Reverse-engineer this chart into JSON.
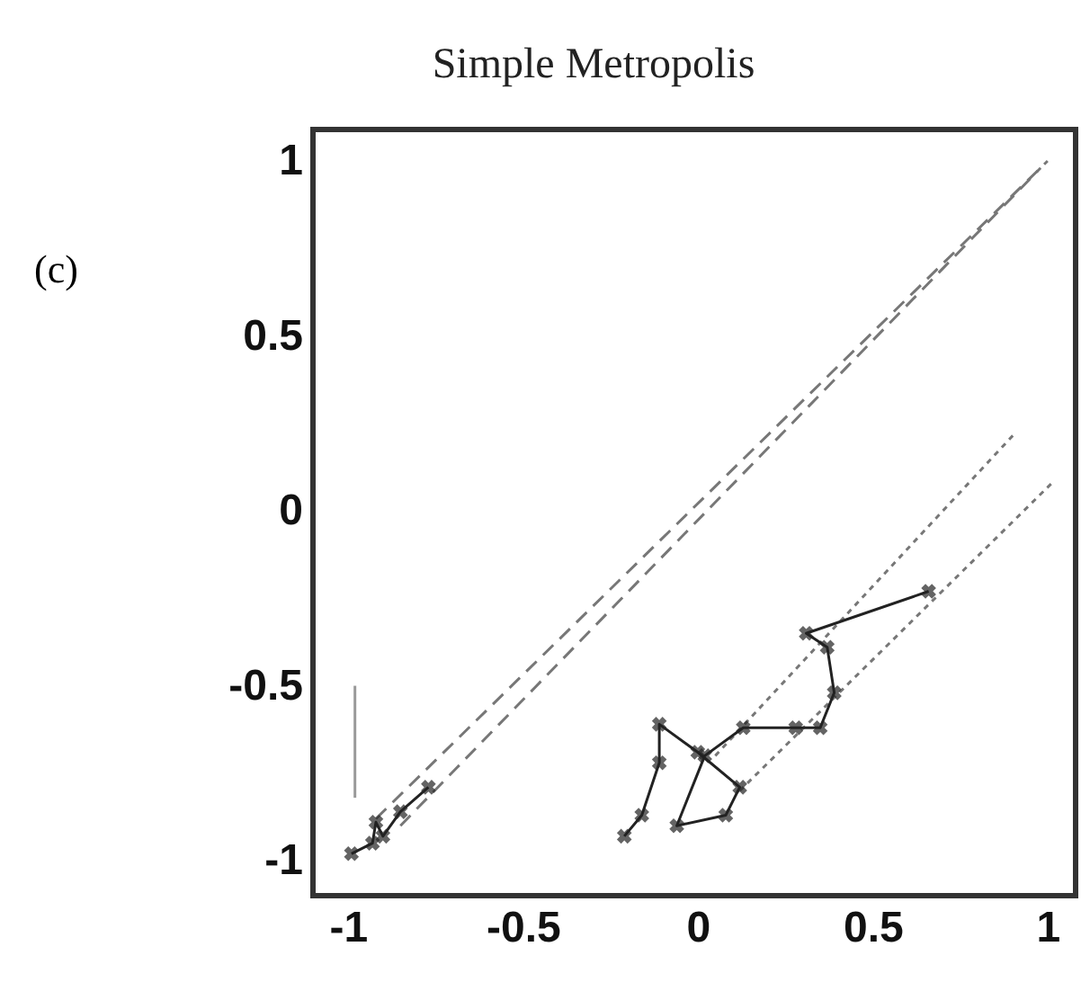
{
  "chart_data": {
    "type": "line",
    "title": "Simple Metropolis",
    "annotations": [
      "(c)"
    ],
    "xlim": [
      -1.1,
      1.08
    ],
    "ylim": [
      -1.1,
      1.09
    ],
    "xticks": [
      -1,
      -0.5,
      0,
      0.5,
      1
    ],
    "yticks": [
      -1,
      -0.5,
      0,
      0.5,
      1
    ],
    "grid": false,
    "series": [
      {
        "color": "#777777",
        "line_style": "dashed",
        "marker": "none",
        "x": [
          -0.92,
          1.0
        ],
        "values": [
          -0.88,
          1.0
        ]
      },
      {
        "color": "#777777",
        "line_style": "dashed",
        "marker": "none",
        "x": [
          -0.85,
          0.98
        ],
        "values": [
          -0.9,
          0.98
        ]
      },
      {
        "color": "#777777",
        "line_style": "dotted",
        "marker": "none",
        "x": [
          0.05,
          0.905
        ],
        "values": [
          -0.7,
          0.22
        ]
      },
      {
        "color": "#777777",
        "line_style": "dotted",
        "marker": "none",
        "x": [
          0.12,
          1.02
        ],
        "values": [
          -0.8,
          0.087
        ]
      },
      {
        "color": "#222222",
        "line_style": "solid",
        "marker": "cross",
        "x": [
          -0.21,
          -0.16,
          -0.11,
          -0.11,
          0.0,
          0.12,
          0.08,
          -0.06,
          0.02,
          0.13,
          0.28,
          0.35,
          0.39,
          0.37,
          0.31,
          0.66
        ],
        "values": [
          -0.93,
          -0.87,
          -0.72,
          -0.61,
          -0.69,
          -0.79,
          -0.87,
          -0.9,
          -0.7,
          -0.62,
          -0.62,
          -0.62,
          -0.52,
          -0.39,
          -0.35,
          -0.23
        ]
      },
      {
        "color": "#222222",
        "line_style": "solid",
        "marker": "cross",
        "x": [
          -0.99,
          -0.93,
          -0.92,
          -0.9,
          -0.85,
          -0.77
        ],
        "values": [
          -0.98,
          -0.95,
          -0.89,
          -0.93,
          -0.86,
          -0.79
        ]
      },
      {
        "color": "#999999",
        "line_style": "solid",
        "marker": "none",
        "x": [
          -0.98,
          -0.98
        ],
        "values": [
          -0.5,
          -0.82
        ]
      }
    ]
  }
}
